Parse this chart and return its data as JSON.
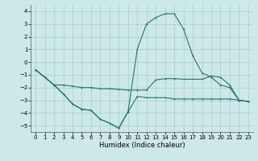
{
  "xlabel": "Humidex (Indice chaleur)",
  "bg_color": "#cce8e8",
  "grid_color": "#aacccc",
  "line_color": "#1a7a6e",
  "xlim": [
    -0.5,
    23.5
  ],
  "ylim": [
    -5.5,
    4.5
  ],
  "xticks": [
    0,
    1,
    2,
    3,
    4,
    5,
    6,
    7,
    8,
    9,
    10,
    11,
    12,
    13,
    14,
    15,
    16,
    17,
    18,
    19,
    20,
    21,
    22,
    23
  ],
  "yticks": [
    -5,
    -4,
    -3,
    -2,
    -1,
    0,
    1,
    2,
    3,
    4
  ],
  "line1_x": [
    0,
    1,
    2,
    3,
    4,
    5,
    6,
    7,
    8,
    9,
    10,
    11,
    12,
    13,
    14,
    15,
    16,
    17,
    18,
    19,
    20,
    21,
    22,
    23
  ],
  "line1_y": [
    -0.6,
    -1.2,
    -1.8,
    -1.8,
    -1.9,
    -2.0,
    -2.0,
    -2.1,
    -2.1,
    -2.15,
    -2.2,
    -2.2,
    -2.2,
    -1.4,
    -1.3,
    -1.3,
    -1.35,
    -1.35,
    -1.35,
    -1.1,
    -1.2,
    -1.8,
    -3.0,
    -3.1
  ],
  "line2_x": [
    0,
    1,
    2,
    3,
    4,
    5,
    6,
    7,
    8,
    9,
    10,
    11,
    12,
    13,
    14,
    15,
    16,
    17,
    18,
    19,
    20,
    21,
    22,
    23
  ],
  "line2_y": [
    -0.6,
    -1.2,
    -1.8,
    -2.5,
    -3.3,
    -3.7,
    -3.8,
    -4.5,
    -4.8,
    -5.2,
    -3.9,
    -2.7,
    -2.8,
    -2.8,
    -2.8,
    -2.9,
    -2.9,
    -2.9,
    -2.9,
    -2.9,
    -2.9,
    -2.9,
    -3.0,
    -3.1
  ],
  "line3_x": [
    0,
    1,
    2,
    3,
    4,
    5,
    6,
    7,
    8,
    9,
    10,
    11,
    12,
    13,
    14,
    15,
    16,
    17,
    18,
    19,
    20,
    21,
    22,
    23
  ],
  "line3_y": [
    -0.6,
    -1.2,
    -1.8,
    -2.5,
    -3.3,
    -3.7,
    -3.8,
    -4.5,
    -4.8,
    -5.2,
    -3.9,
    1.0,
    3.0,
    3.5,
    3.8,
    3.8,
    2.6,
    0.5,
    -0.85,
    -1.2,
    -1.8,
    -2.0,
    -3.0,
    -3.1
  ]
}
